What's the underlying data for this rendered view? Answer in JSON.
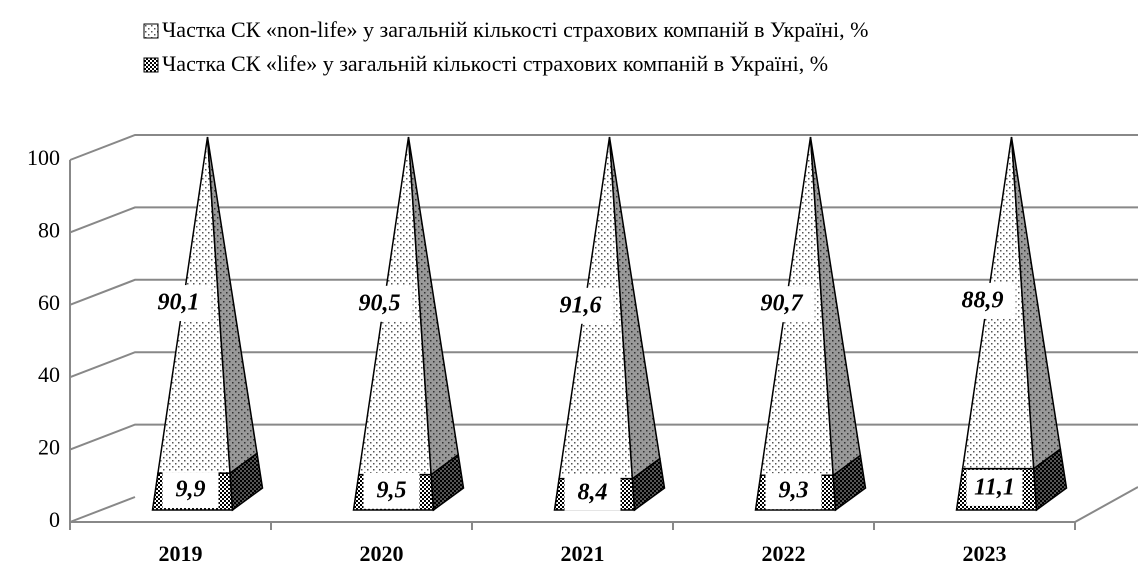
{
  "chart_data": {
    "type": "pyramid3d-stacked",
    "categories": [
      "2019",
      "2020",
      "2021",
      "2022",
      "2023"
    ],
    "series": [
      {
        "name": "Частка СК «non-life» у загальній кількості страхових компаній в Україні, %",
        "values": [
          90.1,
          90.5,
          91.6,
          90.7,
          88.9
        ],
        "value_labels": [
          "90,1",
          "90,5",
          "91,6",
          "90,7",
          "88,9"
        ]
      },
      {
        "name": "Частка СК «life» у загальній кількості страхових компаній в Україні, %",
        "values": [
          9.9,
          9.5,
          8.4,
          9.3,
          11.1
        ],
        "value_labels": [
          "9,9",
          "9,5",
          "8,4",
          "9,3",
          "11,1"
        ]
      }
    ],
    "ylim": [
      0,
      100
    ],
    "yticks": [
      0,
      20,
      40,
      60,
      80,
      100
    ],
    "grid": true
  }
}
